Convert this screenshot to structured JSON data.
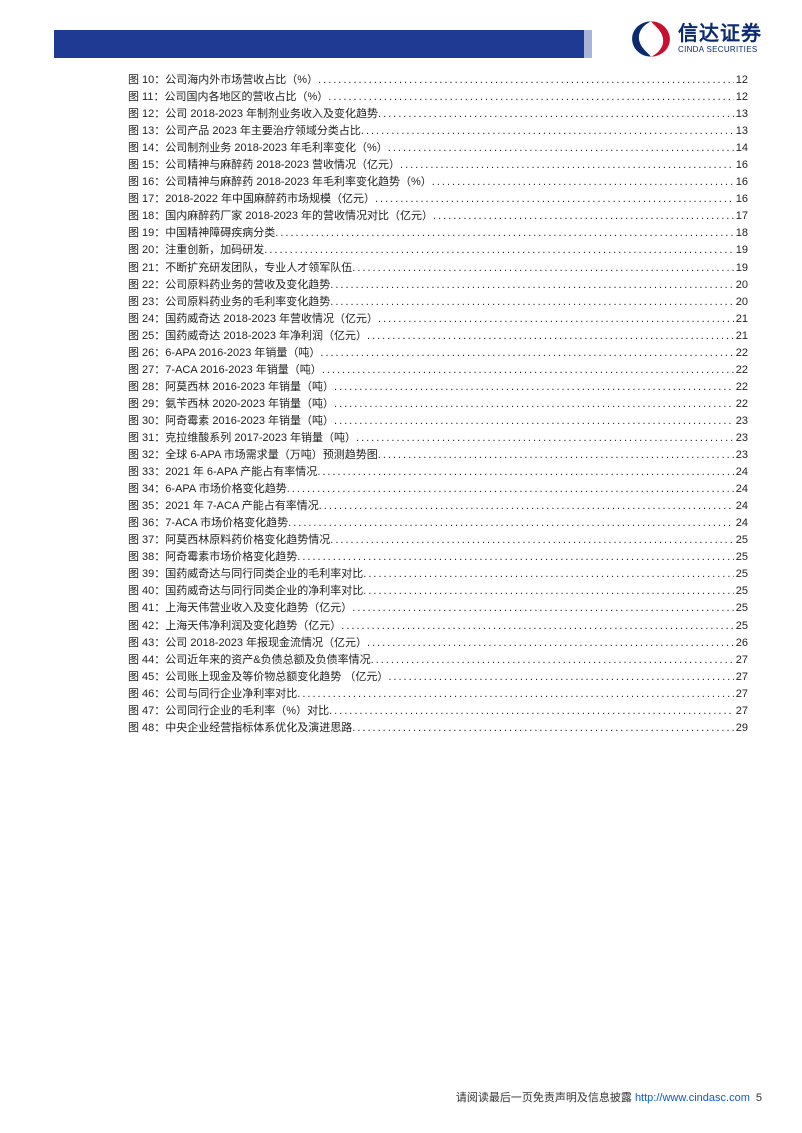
{
  "brand": {
    "cn": "信达证券",
    "en": "CINDA SECURITIES"
  },
  "colors": {
    "header_bar": "#1f3a93",
    "header_stripe": "#a8b4d8",
    "logo_red": "#c8102e",
    "logo_navy": "#0c2a6e",
    "link": "#0b5bd3",
    "text": "#222222"
  },
  "fonts": {
    "toc_size": 11,
    "footer_size": 11,
    "logo_cn_size": 20,
    "logo_en_size": 8
  },
  "footer": {
    "prefix": "请阅读最后一页免责声明及信息披露 ",
    "url": "http://www.cindasc.com",
    "page": "5"
  },
  "toc": [
    {
      "label": "图 10：",
      "title": "公司海内外市场营收占比（%）",
      "page": "12"
    },
    {
      "label": "图 11：",
      "title": "公司国内各地区的营收占比（%）",
      "page": "12"
    },
    {
      "label": "图 12：",
      "title": "公司 2018-2023 年制剂业务收入及变化趋势",
      "page": "13"
    },
    {
      "label": "图 13：",
      "title": "公司产品 2023 年主要治疗领域分类占比",
      "page": "13"
    },
    {
      "label": "图 14：",
      "title": "公司制剂业务 2018-2023 年毛利率变化（%）",
      "page": "14"
    },
    {
      "label": "图 15：",
      "title": "公司精神与麻醉药 2018-2023 营收情况（亿元）",
      "page": "16"
    },
    {
      "label": "图 16：",
      "title": "公司精神与麻醉药 2018-2023 年毛利率变化趋势（%）",
      "page": "16"
    },
    {
      "label": "图 17：",
      "title": "2018-2022 年中国麻醉药市场规模（亿元）",
      "page": "16"
    },
    {
      "label": "图 18：",
      "title": "国内麻醉药厂家 2018-2023 年的营收情况对比（亿元）",
      "page": "17"
    },
    {
      "label": "图 19：",
      "title": "中国精神障碍疾病分类",
      "page": "18"
    },
    {
      "label": "图 20：",
      "title": "注重创新，加码研发",
      "page": "19"
    },
    {
      "label": "图 21：",
      "title": "不断扩充研发团队，专业人才领军队伍",
      "page": "19"
    },
    {
      "label": "图 22：",
      "title": "公司原料药业务的营收及变化趋势",
      "page": "20"
    },
    {
      "label": "图 23：",
      "title": "公司原料药业务的毛利率变化趋势",
      "page": "20"
    },
    {
      "label": "图 24：",
      "title": "国药威奇达 2018-2023 年营收情况（亿元）",
      "page": "21"
    },
    {
      "label": "图 25：",
      "title": "国药威奇达 2018-2023 年净利润（亿元）",
      "page": "21"
    },
    {
      "label": "图 26：",
      "title": "6-APA 2016-2023 年销量（吨）",
      "page": "22"
    },
    {
      "label": "图 27：",
      "title": "7-ACA 2016-2023 年销量（吨）",
      "page": "22"
    },
    {
      "label": "图 28：",
      "title": "阿莫西林 2016-2023 年销量（吨）",
      "page": "22"
    },
    {
      "label": "图 29：",
      "title": "氨苄西林 2020-2023 年销量（吨）",
      "page": "22"
    },
    {
      "label": "图 30：",
      "title": "阿奇霉素 2016-2023 年销量（吨）",
      "page": "23"
    },
    {
      "label": "图 31：",
      "title": "克拉维酸系列 2017-2023 年销量（吨）",
      "page": "23"
    },
    {
      "label": "图 32：",
      "title": "全球 6-APA 市场需求量（万吨）预测趋势图",
      "page": "23"
    },
    {
      "label": "图 33：",
      "title": "2021 年 6-APA 产能占有率情况",
      "page": "24"
    },
    {
      "label": "图 34：",
      "title": "6-APA 市场价格变化趋势",
      "page": "24"
    },
    {
      "label": "图 35：",
      "title": "2021 年 7-ACA 产能占有率情况",
      "page": "24"
    },
    {
      "label": "图 36：",
      "title": "7-ACA 市场价格变化趋势",
      "page": "24"
    },
    {
      "label": "图 37：",
      "title": "阿莫西林原料药价格变化趋势情况",
      "page": "25"
    },
    {
      "label": "图 38：",
      "title": "阿奇霉素市场价格变化趋势",
      "page": "25"
    },
    {
      "label": "图 39：",
      "title": "国药威奇达与同行同类企业的毛利率对比",
      "page": "25"
    },
    {
      "label": "图 40：",
      "title": "国药威奇达与同行同类企业的净利率对比",
      "page": "25"
    },
    {
      "label": "图 41：",
      "title": "上海天伟营业收入及变化趋势（亿元）",
      "page": "25"
    },
    {
      "label": "图 42：",
      "title": "上海天伟净利润及变化趋势（亿元）",
      "page": "25"
    },
    {
      "label": "图 43：",
      "title": "公司 2018-2023 年报现金流情况（亿元）",
      "page": "26"
    },
    {
      "label": "图 44：",
      "title": "公司近年来的资产&负债总额及负债率情况",
      "page": "27"
    },
    {
      "label": "图 45：",
      "title": "公司账上现金及等价物总额变化趋势 （亿元）",
      "page": "27"
    },
    {
      "label": "图 46：",
      "title": "公司与同行企业净利率对比",
      "page": "27"
    },
    {
      "label": "图 47：",
      "title": "公司同行企业的毛利率（%）对比",
      "page": "27"
    },
    {
      "label": "图 48：",
      "title": "中央企业经营指标体系优化及演进思路",
      "page": "29"
    }
  ]
}
